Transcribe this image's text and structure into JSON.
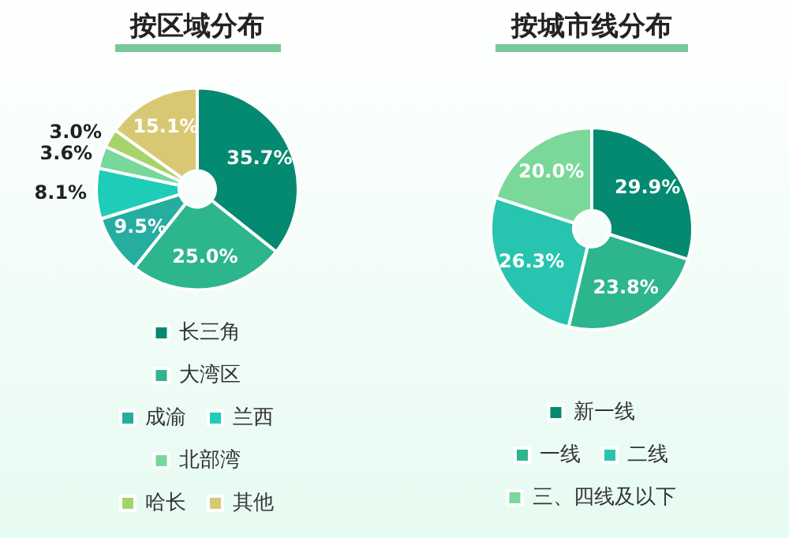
{
  "chart_data": [
    {
      "type": "donut",
      "title": "按区域分布",
      "categories": [
        "长三角",
        "大湾区",
        "成渝",
        "兰西",
        "北部湾",
        "哈长",
        "其他"
      ],
      "values": [
        35.7,
        25.0,
        9.5,
        8.1,
        3.6,
        3.0,
        15.1
      ],
      "colors": [
        "#048a70",
        "#2db58d",
        "#25ada0",
        "#1ecdb8",
        "#78d79a",
        "#a6d46a",
        "#d9c873"
      ],
      "value_labels": [
        "35.7%",
        "25.0%",
        "9.5%",
        "8.1%",
        "3.6%",
        "3.0%",
        "15.1%"
      ],
      "legend": "bottom"
    },
    {
      "type": "donut",
      "title": "按城市线分布",
      "categories": [
        "新一线",
        "一线",
        "二线",
        "三、四线及以下"
      ],
      "values": [
        29.9,
        23.8,
        26.3,
        20.0
      ],
      "colors": [
        "#048a70",
        "#2db58d",
        "#27c4b0",
        "#7ad89a"
      ],
      "value_labels": [
        "29.9%",
        "23.8%",
        "26.3%",
        "20.0%"
      ],
      "legend": "bottom"
    }
  ]
}
